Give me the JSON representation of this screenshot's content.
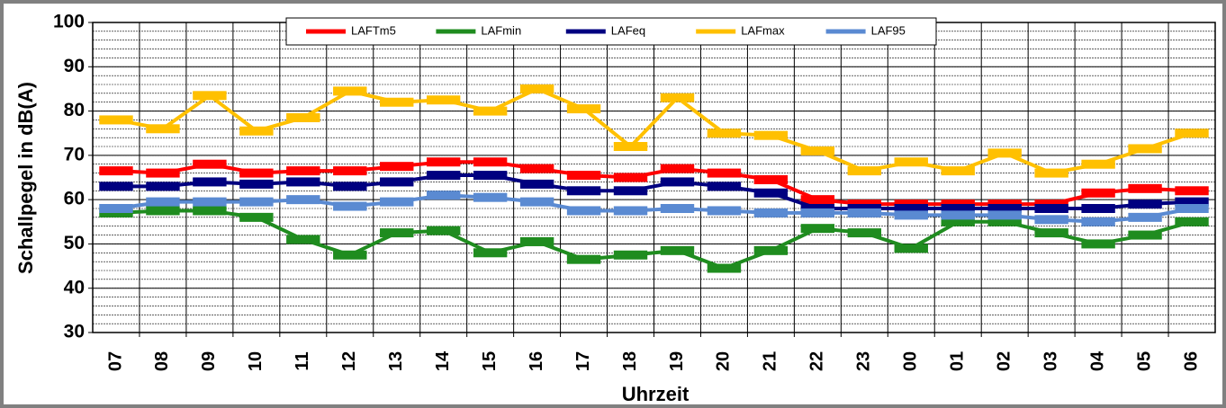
{
  "chart_data": {
    "type": "line",
    "x_label": "Uhrzeit",
    "y_label": "Schallpegel in dB(A)",
    "categories": [
      "07",
      "08",
      "09",
      "10",
      "11",
      "12",
      "13",
      "14",
      "15",
      "16",
      "17",
      "18",
      "19",
      "20",
      "21",
      "22",
      "23",
      "00",
      "01",
      "02",
      "03",
      "04",
      "05",
      "06"
    ],
    "series": [
      {
        "name": "LAFTm5",
        "color": "#ff0000",
        "values": [
          66.5,
          66,
          68,
          66,
          66.5,
          66.5,
          67.5,
          68.5,
          68.5,
          67,
          65.5,
          65,
          67,
          66,
          64.5,
          60,
          59,
          59,
          59,
          59,
          59,
          61.5,
          62.5,
          62
        ]
      },
      {
        "name": "LAFmin",
        "color": "#1f8c1f",
        "values": [
          57,
          57.5,
          57.5,
          56,
          51,
          47.5,
          52.5,
          53,
          48,
          50.5,
          46.5,
          47.5,
          48.5,
          44.5,
          48.5,
          53.5,
          52.5,
          49,
          55,
          55,
          52.5,
          50,
          52,
          55
        ]
      },
      {
        "name": "LAFeq",
        "color": "#000080",
        "values": [
          63,
          63,
          64,
          63.5,
          64,
          63,
          64,
          65.5,
          65.5,
          63.5,
          62,
          62,
          64,
          63,
          61.5,
          58,
          58,
          58,
          58,
          58,
          58,
          58,
          59,
          59.5
        ]
      },
      {
        "name": "LAFmax",
        "color": "#ffc000",
        "values": [
          78,
          76,
          83.5,
          75.5,
          78.5,
          84.5,
          82,
          82.5,
          80,
          85,
          80.5,
          72,
          83,
          75,
          74.5,
          71,
          66.5,
          68.5,
          66.5,
          70.5,
          66,
          68,
          71.5,
          75
        ]
      },
      {
        "name": "LAF95",
        "color": "#5a8ad2",
        "values": [
          58,
          59.5,
          59.5,
          59.5,
          60,
          58.5,
          59.5,
          61,
          60.5,
          59.5,
          57.5,
          57.5,
          58,
          57.5,
          57,
          57,
          57,
          56.5,
          56.5,
          56.5,
          55.5,
          55,
          56,
          58
        ]
      }
    ],
    "ylim": [
      30,
      100
    ],
    "yticks": [
      30,
      40,
      50,
      60,
      70,
      80,
      90,
      100
    ],
    "minor_grid_step": 2,
    "grid": true,
    "legend": "top"
  }
}
